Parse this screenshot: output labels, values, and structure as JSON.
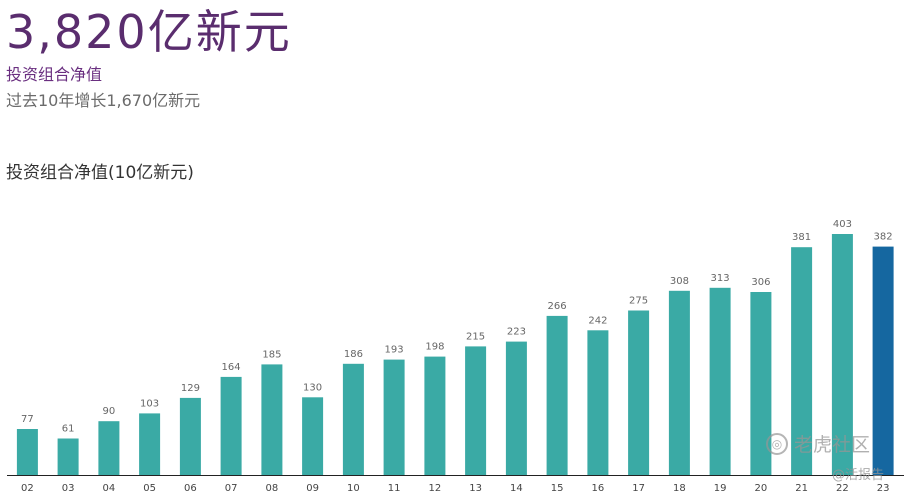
{
  "header": {
    "headline": "3,820亿新元",
    "subtitle": "投资组合净值",
    "growth_note": "过去10年增长1,670亿新元"
  },
  "watermark": {
    "brand": "老虎社区",
    "handle": "@活报告",
    "icon": "tiger-logo-icon"
  },
  "chart_data": {
    "type": "bar",
    "title": "投资组合净值(10亿新元)",
    "xlabel": "",
    "ylabel": "",
    "categories": [
      "02",
      "03",
      "04",
      "05",
      "06",
      "07",
      "08",
      "09",
      "10",
      "11",
      "12",
      "13",
      "14",
      "15",
      "16",
      "17",
      "18",
      "19",
      "20",
      "21",
      "22",
      "23"
    ],
    "values": [
      77,
      61,
      90,
      103,
      129,
      164,
      185,
      130,
      186,
      193,
      198,
      215,
      223,
      266,
      242,
      275,
      308,
      313,
      306,
      381,
      403,
      382
    ],
    "ylim": [
      0,
      403
    ],
    "grid": false,
    "bar_color": "#3aaaa5",
    "highlight_color": "#1567a0",
    "highlight_category": "23",
    "value_label_color": "#666666",
    "tick_label_color": "#444444"
  }
}
